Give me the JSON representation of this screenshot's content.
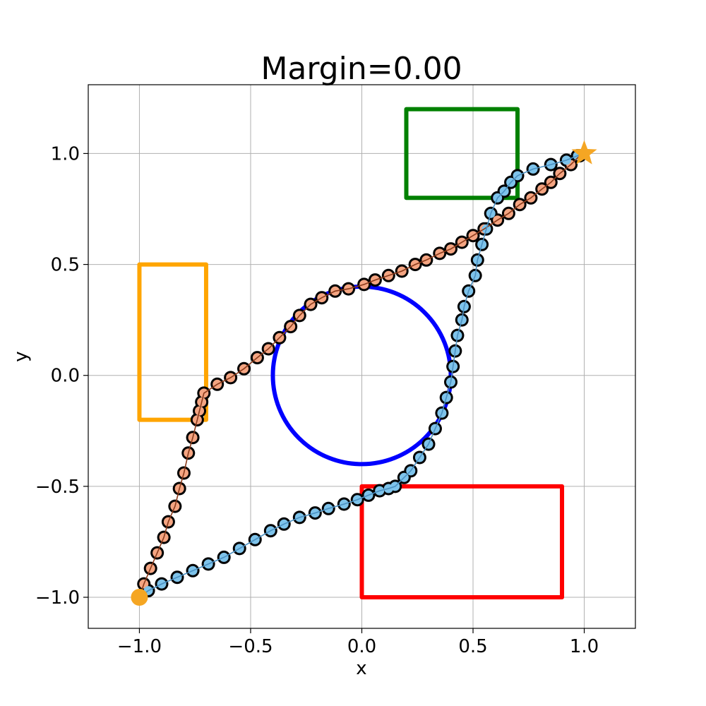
{
  "chart_data": {
    "type": "scatter",
    "title": "Margin=0.00",
    "xlabel": "x",
    "ylabel": "y",
    "xlim": [
      -1.23,
      1.23
    ],
    "ylim": [
      -1.14,
      1.31
    ],
    "grid": true,
    "x_ticks": [
      -1.0,
      -0.5,
      0.0,
      0.5,
      1.0
    ],
    "y_ticks": [
      -1.0,
      -0.5,
      0.0,
      0.5,
      1.0
    ],
    "x_tick_labels": [
      "−1.0",
      "−0.5",
      "0.0",
      "0.5",
      "1.0"
    ],
    "y_tick_labels": [
      "−1.0",
      "−0.5",
      "0.0",
      "0.5",
      "1.0"
    ],
    "start": {
      "x": -1.0,
      "y": -1.0,
      "marker": "circle",
      "color": "#f5a623"
    },
    "goal": {
      "x": 1.0,
      "y": 1.0,
      "marker": "star",
      "color": "#f5a623"
    },
    "obstacles": [
      {
        "shape": "rect",
        "x0": -1.0,
        "y0": -0.2,
        "x1": -0.7,
        "y1": 0.5,
        "color": "#ffa500"
      },
      {
        "shape": "rect",
        "x0": 0.2,
        "y0": 0.8,
        "x1": 0.7,
        "y1": 1.2,
        "color": "#008000"
      },
      {
        "shape": "rect",
        "x0": 0.0,
        "y0": -1.0,
        "x1": 0.9,
        "y1": -0.5,
        "color": "#ff0000"
      },
      {
        "shape": "circle",
        "cx": 0.0,
        "cy": 0.0,
        "r": 0.4,
        "color": "#0000ff"
      }
    ],
    "series": [
      {
        "color": "#f4a582",
        "line_color": "#8b3a1a",
        "points": [
          [
            -0.98,
            -0.94
          ],
          [
            -0.95,
            -0.87
          ],
          [
            -0.92,
            -0.8
          ],
          [
            -0.89,
            -0.73
          ],
          [
            -0.87,
            -0.66
          ],
          [
            -0.84,
            -0.59
          ],
          [
            -0.82,
            -0.51
          ],
          [
            -0.8,
            -0.44
          ],
          [
            -0.78,
            -0.35
          ],
          [
            -0.76,
            -0.28
          ],
          [
            -0.74,
            -0.2
          ],
          [
            -0.73,
            -0.16
          ],
          [
            -0.72,
            -0.12
          ],
          [
            -0.71,
            -0.08
          ],
          [
            -0.65,
            -0.04
          ],
          [
            -0.59,
            -0.01
          ],
          [
            -0.53,
            0.03
          ],
          [
            -0.47,
            0.08
          ],
          [
            -0.42,
            0.12
          ],
          [
            -0.37,
            0.17
          ],
          [
            -0.32,
            0.22
          ],
          [
            -0.28,
            0.27
          ],
          [
            -0.23,
            0.32
          ],
          [
            -0.18,
            0.35
          ],
          [
            -0.12,
            0.38
          ],
          [
            -0.06,
            0.39
          ],
          [
            0.01,
            0.41
          ],
          [
            0.06,
            0.43
          ],
          [
            0.12,
            0.45
          ],
          [
            0.18,
            0.47
          ],
          [
            0.24,
            0.5
          ],
          [
            0.29,
            0.52
          ],
          [
            0.35,
            0.55
          ],
          [
            0.4,
            0.57
          ],
          [
            0.45,
            0.6
          ],
          [
            0.5,
            0.63
          ],
          [
            0.55,
            0.66
          ],
          [
            0.61,
            0.7
          ],
          [
            0.66,
            0.73
          ],
          [
            0.71,
            0.77
          ],
          [
            0.76,
            0.8
          ],
          [
            0.81,
            0.84
          ],
          [
            0.85,
            0.87
          ],
          [
            0.89,
            0.91
          ],
          [
            0.94,
            0.95
          ],
          [
            0.98,
            0.99
          ]
        ]
      },
      {
        "color": "#7ec3ea",
        "line_color": "#4a90c2",
        "points": [
          [
            -0.96,
            -0.97
          ],
          [
            -0.9,
            -0.94
          ],
          [
            -0.83,
            -0.91
          ],
          [
            -0.76,
            -0.88
          ],
          [
            -0.69,
            -0.85
          ],
          [
            -0.62,
            -0.82
          ],
          [
            -0.55,
            -0.78
          ],
          [
            -0.48,
            -0.74
          ],
          [
            -0.41,
            -0.7
          ],
          [
            -0.35,
            -0.67
          ],
          [
            -0.28,
            -0.64
          ],
          [
            -0.21,
            -0.62
          ],
          [
            -0.15,
            -0.6
          ],
          [
            -0.08,
            -0.58
          ],
          [
            -0.02,
            -0.56
          ],
          [
            0.03,
            -0.54
          ],
          [
            0.08,
            -0.52
          ],
          [
            0.12,
            -0.51
          ],
          [
            0.15,
            -0.5
          ],
          [
            0.19,
            -0.46
          ],
          [
            0.22,
            -0.43
          ],
          [
            0.26,
            -0.37
          ],
          [
            0.3,
            -0.31
          ],
          [
            0.33,
            -0.24
          ],
          [
            0.36,
            -0.17
          ],
          [
            0.38,
            -0.1
          ],
          [
            0.4,
            -0.03
          ],
          [
            0.41,
            0.04
          ],
          [
            0.42,
            0.11
          ],
          [
            0.43,
            0.18
          ],
          [
            0.45,
            0.25
          ],
          [
            0.46,
            0.31
          ],
          [
            0.48,
            0.38
          ],
          [
            0.51,
            0.45
          ],
          [
            0.52,
            0.52
          ],
          [
            0.54,
            0.59
          ],
          [
            0.56,
            0.66
          ],
          [
            0.58,
            0.73
          ],
          [
            0.61,
            0.8
          ],
          [
            0.64,
            0.83
          ],
          [
            0.67,
            0.87
          ],
          [
            0.7,
            0.9
          ],
          [
            0.77,
            0.93
          ],
          [
            0.85,
            0.95
          ],
          [
            0.92,
            0.97
          ],
          [
            0.97,
            0.99
          ]
        ]
      }
    ]
  }
}
